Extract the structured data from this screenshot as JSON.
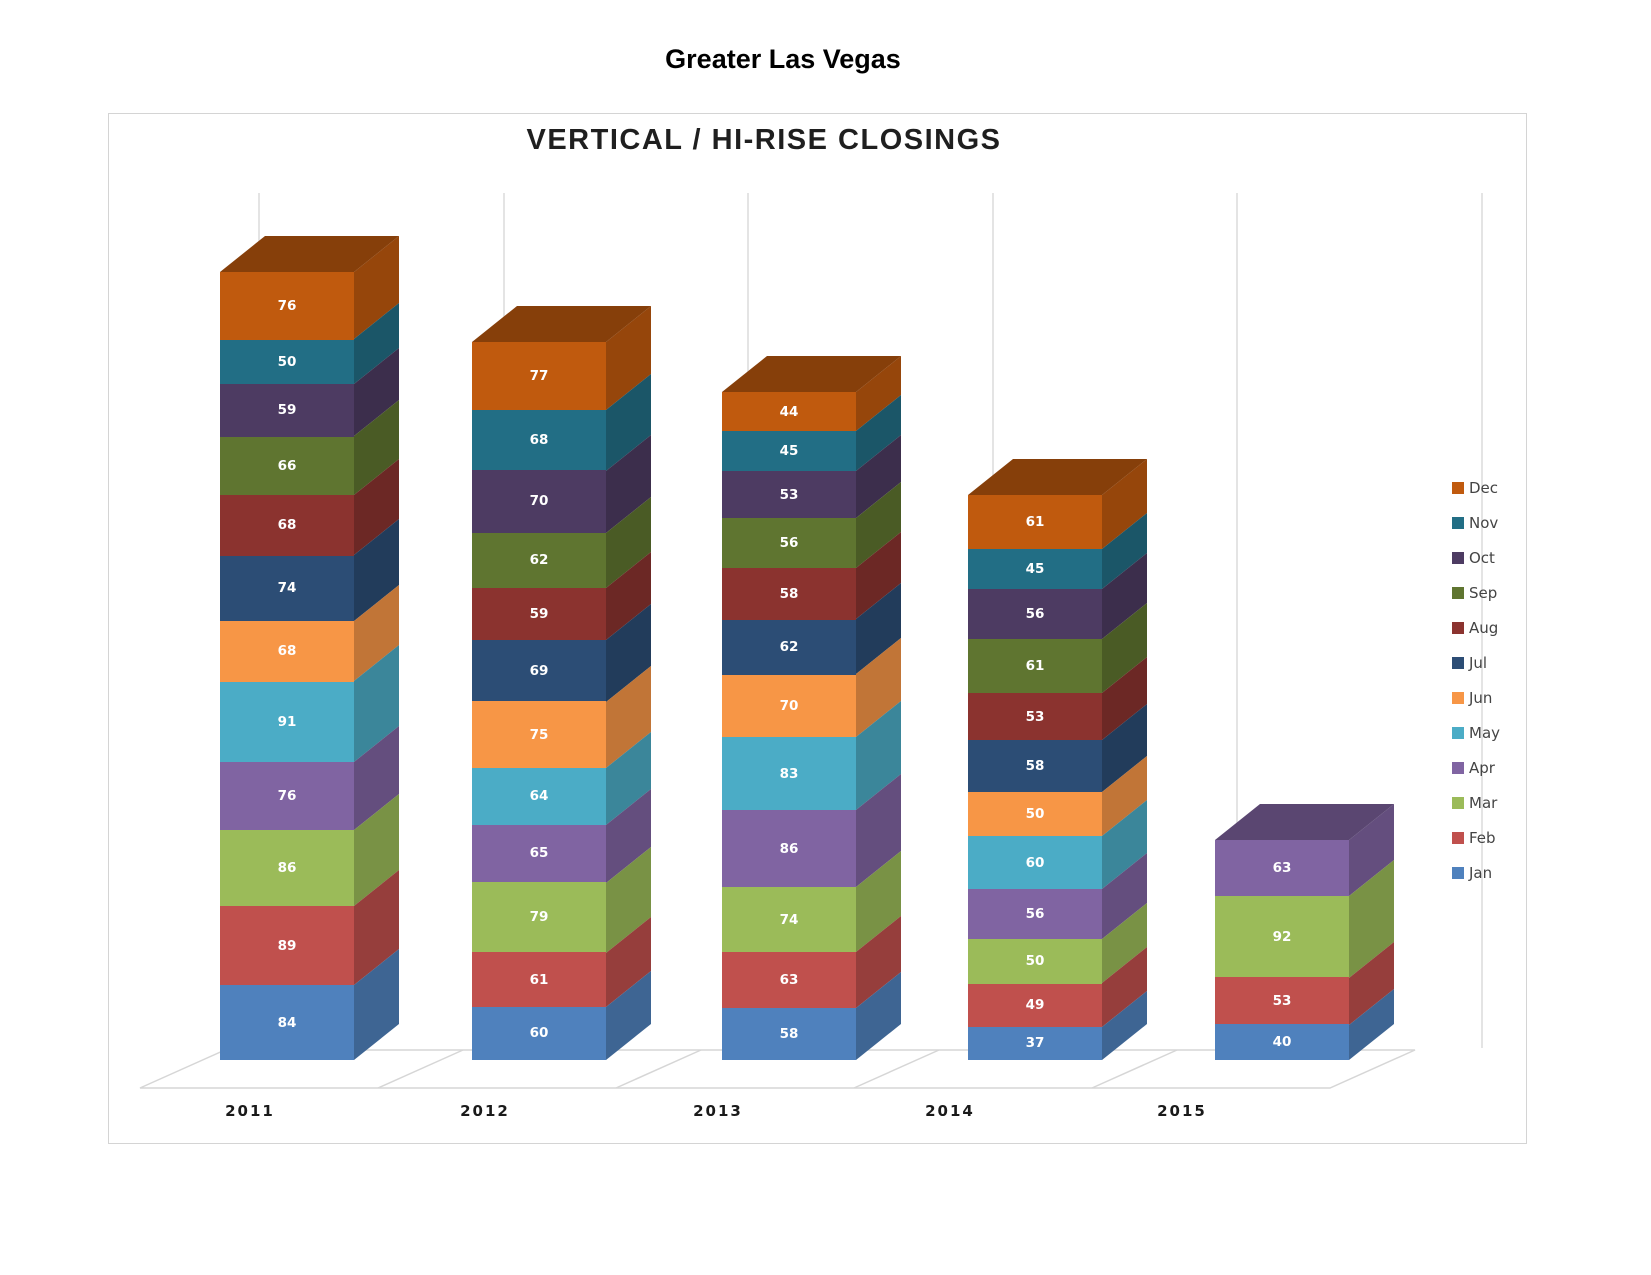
{
  "page": {
    "header_title": "Greater Las Vegas"
  },
  "chart_data": {
    "type": "bar",
    "stacked": true,
    "projection": "3d",
    "title": "VERTICAL / HI-RISE CLOSINGS",
    "categories": [
      "2011",
      "2012",
      "2013",
      "2014",
      "2015"
    ],
    "series": [
      {
        "name": "Jan",
        "color": "#4F81BD",
        "values": [
          84,
          60,
          58,
          37,
          40
        ]
      },
      {
        "name": "Feb",
        "color": "#C0504D",
        "values": [
          89,
          61,
          63,
          49,
          53
        ]
      },
      {
        "name": "Mar",
        "color": "#9BBB59",
        "values": [
          86,
          79,
          74,
          50,
          92
        ]
      },
      {
        "name": "Apr",
        "color": "#8064A2",
        "values": [
          76,
          65,
          86,
          56,
          63
        ]
      },
      {
        "name": "May",
        "color": "#4BACC6",
        "values": [
          91,
          64,
          83,
          60,
          null
        ]
      },
      {
        "name": "Jun",
        "color": "#F79646",
        "values": [
          68,
          75,
          70,
          50,
          null
        ]
      },
      {
        "name": "Jul",
        "color": "#2C4D75",
        "values": [
          74,
          69,
          62,
          58,
          null
        ]
      },
      {
        "name": "Aug",
        "color": "#8B332F",
        "values": [
          68,
          59,
          58,
          53,
          null
        ]
      },
      {
        "name": "Sep",
        "color": "#5F7530",
        "values": [
          66,
          62,
          56,
          61,
          null
        ]
      },
      {
        "name": "Oct",
        "color": "#4D3B62",
        "values": [
          59,
          70,
          53,
          56,
          null
        ]
      },
      {
        "name": "Nov",
        "color": "#226E85",
        "values": [
          50,
          68,
          45,
          45,
          null
        ]
      },
      {
        "name": "Dec",
        "color": "#C05A0E",
        "values": [
          76,
          77,
          44,
          61,
          null
        ]
      }
    ],
    "totals": [
      887,
      809,
      752,
      636,
      248
    ],
    "legend_position": "right",
    "legend_order_top_to_bottom": [
      "Dec",
      "Nov",
      "Oct",
      "Sep",
      "Aug",
      "Jul",
      "Jun",
      "May",
      "Apr",
      "Mar",
      "Feb",
      "Jan"
    ],
    "value_axis_visible": false,
    "grid": "vertical back-wall gridlines only",
    "data_labels": "white, centered on each segment"
  }
}
